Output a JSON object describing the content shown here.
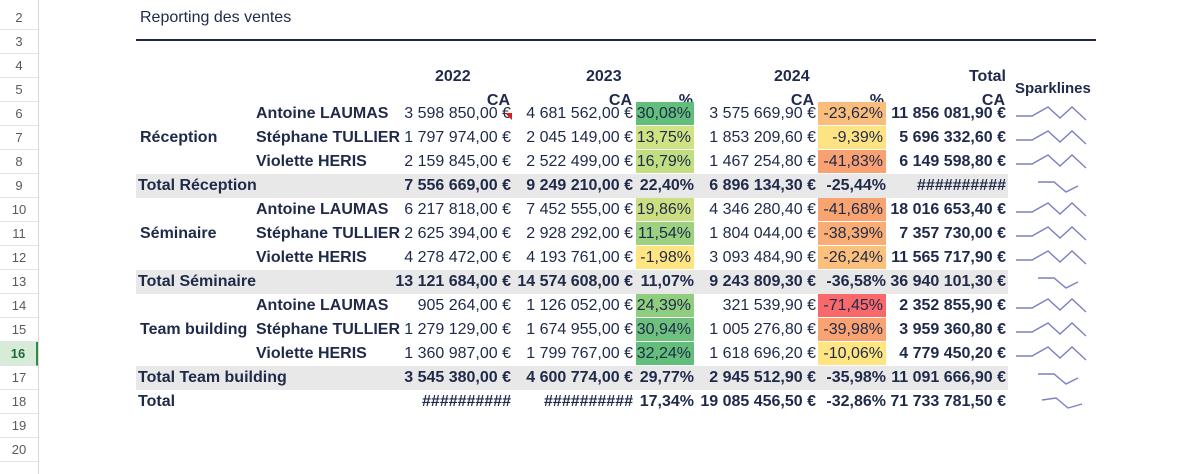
{
  "row_numbers": [
    "2",
    "3",
    "4",
    "5",
    "6",
    "7",
    "8",
    "9",
    "10",
    "11",
    "12",
    "13",
    "14",
    "15",
    "16",
    "17",
    "18",
    "19",
    "20"
  ],
  "selected_row": "16",
  "title": "Reporting des ventes",
  "headers": {
    "y2022": "2022",
    "y2023": "2023",
    "y2024": "2024",
    "total": "Total",
    "ca1": "CA",
    "ca2": "CA",
    "pct2023": "%",
    "ca3": "CA",
    "pct2024": "%",
    "ca4": "CA",
    "sparklines": "Sparklines"
  },
  "groups": [
    {
      "label": "Réception",
      "total_label": "Total Réception",
      "rows": [
        {
          "name": "Antoine LAUMAS",
          "v2022": "3 598 850,00 €",
          "v2023": "4 681 562,00 €",
          "p2023": "30,08%",
          "v2024": "3 575 669,90 €",
          "p2024": "-23,62%",
          "total": "11 856 081,90 €"
        },
        {
          "name": "Stéphane TULLIER",
          "v2022": "1 797 974,00 €",
          "v2023": "2 045 149,00 €",
          "p2023": "13,75%",
          "v2024": "1 853 209,60 €",
          "p2024": "-9,39%",
          "total": "5 696 332,60 €"
        },
        {
          "name": "Violette HERIS",
          "v2022": "2 159 845,00 €",
          "v2023": "2 522 499,00 €",
          "p2023": "16,79%",
          "v2024": "1 467 254,80 €",
          "p2024": "-41,83%",
          "total": "6 149 598,80 €"
        }
      ],
      "totals": {
        "v2022": "7 556 669,00 €",
        "v2023": "9 249 210,00 €",
        "p2023": "22,40%",
        "v2024": "6 896 134,30 €",
        "p2024": "-25,44%",
        "total": "##########"
      }
    },
    {
      "label": "Séminaire",
      "total_label": "Total Séminaire",
      "rows": [
        {
          "name": "Antoine LAUMAS",
          "v2022": "6 217 818,00 €",
          "v2023": "7 452 555,00 €",
          "p2023": "19,86%",
          "v2024": "4 346 280,40 €",
          "p2024": "-41,68%",
          "total": "18 016 653,40 €"
        },
        {
          "name": "Stéphane TULLIER",
          "v2022": "2 625 394,00 €",
          "v2023": "2 928 292,00 €",
          "p2023": "11,54%",
          "v2024": "1 804 044,00 €",
          "p2024": "-38,39%",
          "total": "7 357 730,00 €"
        },
        {
          "name": "Violette HERIS",
          "v2022": "4 278 472,00 €",
          "v2023": "4 193 761,00 €",
          "p2023": "-1,98%",
          "v2024": "3 093 484,90 €",
          "p2024": "-26,24%",
          "total": "11 565 717,90 €"
        }
      ],
      "totals": {
        "v2022": "13 121 684,00 €",
        "v2023": "14 574 608,00 €",
        "p2023": "11,07%",
        "v2024": "9 243 809,30 €",
        "p2024": "-36,58%",
        "total": "36 940 101,30 €"
      }
    },
    {
      "label": "Team building",
      "total_label": "Total Team building",
      "rows": [
        {
          "name": "Antoine LAUMAS",
          "v2022": "905 264,00 €",
          "v2023": "1 126 052,00 €",
          "p2023": "24,39%",
          "v2024": "321 539,90 €",
          "p2024": "-71,45%",
          "total": "2 352 855,90 €"
        },
        {
          "name": "Stéphane TULLIER",
          "v2022": "1 279 129,00 €",
          "v2023": "1 674 955,00 €",
          "p2023": "30,94%",
          "v2024": "1 005 276,80 €",
          "p2024": "-39,98%",
          "total": "3 959 360,80 €"
        },
        {
          "name": "Violette HERIS",
          "v2022": "1 360 987,00 €",
          "v2023": "1 799 767,00 €",
          "p2023": "32,24%",
          "v2024": "1 618 696,20 €",
          "p2024": "-10,06%",
          "total": "4 779 450,20 €"
        }
      ],
      "totals": {
        "v2022": "3 545 380,00 €",
        "v2023": "4 600 774,00 €",
        "p2023": "29,77%",
        "v2024": "2 945 512,90 €",
        "p2024": "-35,98%",
        "total": "11 091 666,90 €"
      }
    }
  ],
  "grand_total": {
    "label": "Total",
    "v2022": "##########",
    "v2023": "##########",
    "p2023": "17,34%",
    "v2024": "19 085 456,50 €",
    "p2024": "-32,86%",
    "total": "71 733 781,50 €"
  },
  "colors": {
    "p2023": [
      "#63be7b",
      "#cfe383",
      "#c1df82",
      "#ccde82",
      "#9bd181",
      "#fee582",
      "#8fcd7f",
      "#6dc17c",
      "#63be7b"
    ],
    "p2024": [
      "#fbbd7b",
      "#fee382",
      "#f9a172",
      "#f8a471",
      "#f9ad75",
      "#fbc07b",
      "#f8696b",
      "#f9a373",
      "#fee582"
    ],
    "sparkline": "#7b7fc4"
  }
}
